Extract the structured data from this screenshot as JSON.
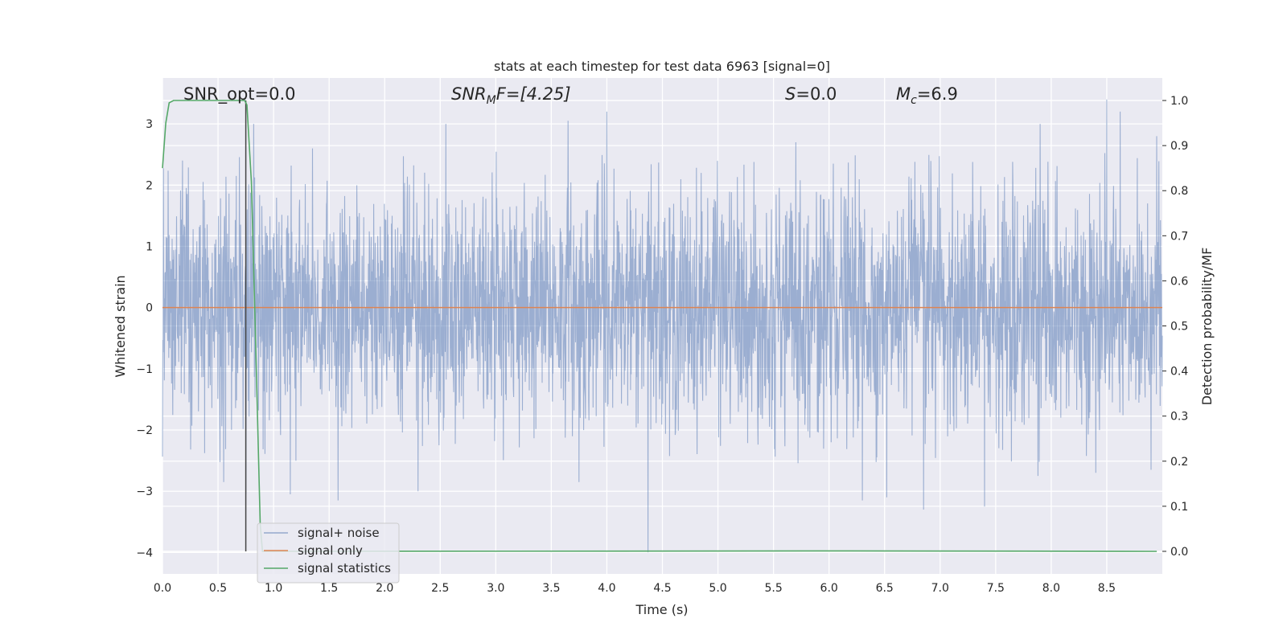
{
  "chart_data": {
    "type": "line",
    "title": "stats at each timestep for test data 6963 [signal=0]",
    "xlabel": "Time (s)",
    "ylabel_left": "Whitened strain",
    "ylabel_right": "Detection probability/MF",
    "xlim": [
      0.0,
      9.0
    ],
    "ylim_left": [
      -4.35,
      3.75
    ],
    "ylim_right": [
      -0.05,
      1.05
    ],
    "x_ticks": [
      0.0,
      0.5,
      1.0,
      1.5,
      2.0,
      2.5,
      3.0,
      3.5,
      4.0,
      4.5,
      5.0,
      5.5,
      6.0,
      6.5,
      7.0,
      7.5,
      8.0,
      8.5
    ],
    "x_tick_labels": [
      "0.0",
      "0.5",
      "1.0",
      "1.5",
      "2.0",
      "2.5",
      "3.0",
      "3.5",
      "4.0",
      "4.5",
      "5.0",
      "5.5",
      "6.0",
      "6.5",
      "7.0",
      "7.5",
      "8.0",
      "8.5"
    ],
    "y_left_ticks": [
      3,
      2,
      1,
      0,
      -1,
      -2,
      -3,
      -4
    ],
    "y_left_tick_labels": [
      "3",
      "2",
      "1",
      "0",
      "−1",
      "−2",
      "−3",
      "−4"
    ],
    "y_right_ticks": [
      1.0,
      0.9,
      0.8,
      0.7,
      0.6,
      0.5,
      0.4,
      0.3,
      0.2,
      0.1,
      0.0
    ],
    "y_right_tick_labels": [
      "1.0",
      "0.9",
      "0.8",
      "0.7",
      "0.6",
      "0.5",
      "0.4",
      "0.3",
      "0.2",
      "0.1",
      "0.0"
    ],
    "grid": true,
    "legend_position": "lower-left",
    "annotations": {
      "snr_opt": "SNR_opt=0.0",
      "snr_mf_symbol": "SNR",
      "snr_mf_sub": "M",
      "snr_mf_tail": "F=[4.25]",
      "s_symbol": "S",
      "s_value": "=0.0",
      "mc_symbol": "M",
      "mc_sub": "c",
      "mc_value": "=6.9"
    },
    "marker_time": 0.75,
    "series": [
      {
        "name": "signal+ noise",
        "color": "#4c72b0",
        "axis": "left",
        "kind": "noise",
        "envelope_std": 0.95,
        "upper_spikes": [
          [
            0.18,
            2.4
          ],
          [
            0.82,
            3.0
          ],
          [
            1.35,
            2.6
          ],
          [
            2.3,
            2.7
          ],
          [
            2.55,
            3.0
          ],
          [
            3.65,
            3.05
          ],
          [
            4.0,
            3.2
          ],
          [
            5.7,
            2.7
          ],
          [
            7.9,
            3.0
          ],
          [
            8.5,
            3.4
          ],
          [
            8.62,
            3.2
          ],
          [
            8.95,
            2.8
          ]
        ],
        "lower_spikes": [
          [
            0.55,
            -2.85
          ],
          [
            0.75,
            -3.05
          ],
          [
            1.15,
            -3.05
          ],
          [
            1.58,
            -3.15
          ],
          [
            2.3,
            -3.0
          ],
          [
            3.75,
            -2.85
          ],
          [
            4.37,
            -4.0
          ],
          [
            6.3,
            -3.15
          ],
          [
            6.52,
            -3.1
          ],
          [
            6.85,
            -3.3
          ],
          [
            7.4,
            -3.25
          ],
          [
            7.88,
            -2.75
          ],
          [
            8.4,
            -2.7
          ],
          [
            8.9,
            -2.65
          ]
        ]
      },
      {
        "name": "signal only",
        "color": "#dd8452",
        "axis": "left",
        "x": [
          0.0,
          9.0
        ],
        "y": [
          0.0,
          0.0
        ]
      },
      {
        "name": "signal statistics",
        "color": "#55a868",
        "axis": "right",
        "x": [
          0.0,
          0.03,
          0.06,
          0.1,
          0.2,
          0.74,
          0.76,
          0.8,
          0.84,
          0.88,
          0.9,
          1.0,
          6.2,
          8.95
        ],
        "y": [
          0.85,
          0.95,
          0.995,
          1.0,
          1.0,
          1.0,
          0.99,
          0.82,
          0.45,
          0.06,
          0.0,
          0.0,
          0.001,
          0.0
        ]
      }
    ]
  }
}
